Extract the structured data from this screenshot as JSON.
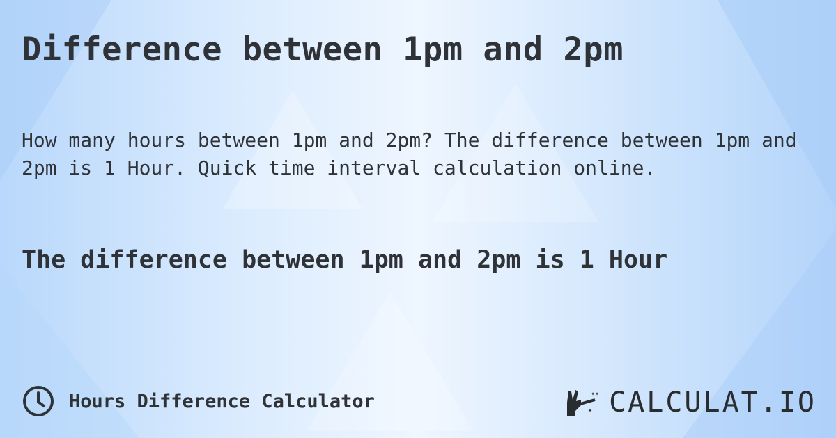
{
  "title": "Difference between 1pm and 2pm",
  "description": "How many hours between 1pm and 2pm? The difference between 1pm and 2pm is 1 Hour. Quick time interval calculation online.",
  "result": "The difference between 1pm and 2pm is 1 Hour",
  "footer": {
    "icon": "clock-icon",
    "label": "Hours Difference Calculator"
  },
  "logo": {
    "text": "CALCULAT.IO"
  },
  "colors": {
    "text": "#2f3337",
    "background": "#d7e9fd"
  }
}
